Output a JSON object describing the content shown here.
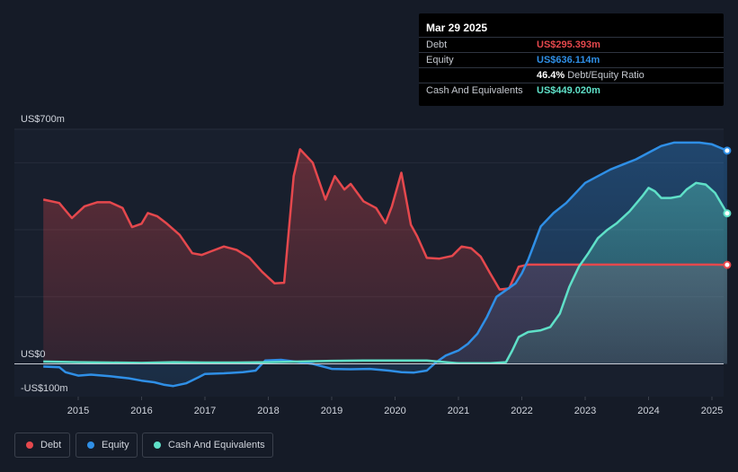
{
  "tooltip": {
    "date": "Mar 29 2025",
    "rows": [
      {
        "label": "Debt",
        "value": "US$295.393m",
        "color": "#e5484d"
      },
      {
        "label": "Equity",
        "value": "US$636.114m",
        "color": "#2f8fe6"
      },
      {
        "label": "",
        "value": "46.4%",
        "suffix": "Debt/Equity Ratio",
        "color": "#ffffff"
      },
      {
        "label": "Cash And Equivalents",
        "value": "US$449.020m",
        "color": "#5fe0c8"
      }
    ]
  },
  "legend": [
    {
      "label": "Debt",
      "color": "#e5484d"
    },
    {
      "label": "Equity",
      "color": "#2f8fe6"
    },
    {
      "label": "Cash And Equivalents",
      "color": "#5fe0c8"
    }
  ],
  "chart_data": {
    "type": "area",
    "y_unit": "US$m",
    "ylim": [
      -100,
      700
    ],
    "xlim": [
      2014.45,
      2025.25
    ],
    "y_tick_labels": [
      {
        "value": 700,
        "label": "US$700m"
      },
      {
        "value": 0,
        "label": "US$0"
      },
      {
        "value": -100,
        "label": "-US$100m"
      }
    ],
    "x_ticks": [
      2015,
      2016,
      2017,
      2018,
      2019,
      2020,
      2021,
      2022,
      2023,
      2024,
      2025
    ],
    "x_tick_labels": [
      "2015",
      "2016",
      "2017",
      "2018",
      "2019",
      "2020",
      "2021",
      "2022",
      "2023",
      "2024",
      "2025"
    ],
    "grid": true,
    "series": [
      {
        "name": "Debt",
        "color": "#e5484d",
        "x": [
          2014.45,
          2014.7,
          2014.9,
          2015.1,
          2015.3,
          2015.5,
          2015.7,
          2015.85,
          2016.0,
          2016.1,
          2016.25,
          2016.4,
          2016.6,
          2016.8,
          2016.95,
          2017.1,
          2017.3,
          2017.5,
          2017.7,
          2017.9,
          2018.1,
          2018.25,
          2018.4,
          2018.5,
          2018.7,
          2018.9,
          2019.05,
          2019.2,
          2019.3,
          2019.5,
          2019.7,
          2019.85,
          2019.95,
          2020.1,
          2020.25,
          2020.35,
          2020.5,
          2020.7,
          2020.9,
          2021.05,
          2021.2,
          2021.35,
          2021.5,
          2021.65,
          2021.8,
          2021.95,
          2022.1,
          2022.5,
          2023.0,
          2023.5,
          2024.0,
          2024.5,
          2025.0,
          2025.24
        ],
        "values": [
          490,
          480,
          435,
          470,
          482,
          482,
          465,
          408,
          418,
          450,
          440,
          418,
          385,
          330,
          325,
          336,
          350,
          340,
          317,
          275,
          240,
          242,
          560,
          640,
          600,
          490,
          560,
          520,
          537,
          485,
          465,
          420,
          470,
          570,
          415,
          380,
          316,
          314,
          322,
          350,
          345,
          320,
          270,
          222,
          225,
          290,
          296,
          296,
          296,
          296,
          296,
          296,
          296,
          295.4
        ]
      },
      {
        "name": "Equity",
        "color": "#2f8fe6",
        "x": [
          2014.45,
          2014.7,
          2014.8,
          2015.0,
          2015.2,
          2015.5,
          2015.8,
          2016.0,
          2016.2,
          2016.35,
          2016.5,
          2016.7,
          2016.9,
          2017.0,
          2017.3,
          2017.6,
          2017.8,
          2017.95,
          2018.2,
          2018.5,
          2018.7,
          2018.9,
          2019.0,
          2019.3,
          2019.6,
          2019.9,
          2020.1,
          2020.3,
          2020.5,
          2020.65,
          2020.8,
          2021.0,
          2021.15,
          2021.3,
          2021.45,
          2021.6,
          2021.75,
          2021.9,
          2022.0,
          2022.1,
          2022.2,
          2022.3,
          2022.5,
          2022.7,
          2022.9,
          2023.0,
          2023.2,
          2023.4,
          2023.6,
          2023.8,
          2024.0,
          2024.2,
          2024.4,
          2024.6,
          2024.8,
          2025.0,
          2025.24
        ],
        "values": [
          -8,
          -10,
          -25,
          -35,
          -32,
          -37,
          -43,
          -50,
          -55,
          -62,
          -66,
          -58,
          -40,
          -30,
          -28,
          -25,
          -20,
          10,
          12,
          5,
          0,
          -10,
          -15,
          -16,
          -15,
          -20,
          -25,
          -26,
          -20,
          5,
          25,
          40,
          60,
          90,
          140,
          200,
          220,
          240,
          270,
          310,
          360,
          410,
          450,
          480,
          520,
          540,
          560,
          580,
          595,
          610,
          630,
          650,
          660,
          660,
          660,
          655,
          636.1
        ]
      },
      {
        "name": "Cash And Equivalents",
        "color": "#5fe0c8",
        "x": [
          2014.45,
          2015.0,
          2015.5,
          2016.0,
          2016.5,
          2017.0,
          2017.5,
          2018.0,
          2018.5,
          2019.0,
          2019.5,
          2020.0,
          2020.5,
          2021.0,
          2021.5,
          2021.75,
          2021.85,
          2021.95,
          2022.1,
          2022.3,
          2022.45,
          2022.6,
          2022.75,
          2022.9,
          2023.05,
          2023.2,
          2023.35,
          2023.5,
          2023.7,
          2023.9,
          2024.0,
          2024.1,
          2024.2,
          2024.35,
          2024.5,
          2024.6,
          2024.75,
          2024.9,
          2025.05,
          2025.24
        ],
        "values": [
          7,
          5,
          4,
          3,
          5,
          4,
          4,
          5,
          7,
          9,
          10,
          10,
          10,
          2,
          2,
          5,
          40,
          80,
          95,
          100,
          110,
          150,
          230,
          290,
          330,
          375,
          400,
          420,
          455,
          500,
          525,
          515,
          495,
          495,
          500,
          520,
          540,
          535,
          510,
          449
        ]
      }
    ]
  }
}
